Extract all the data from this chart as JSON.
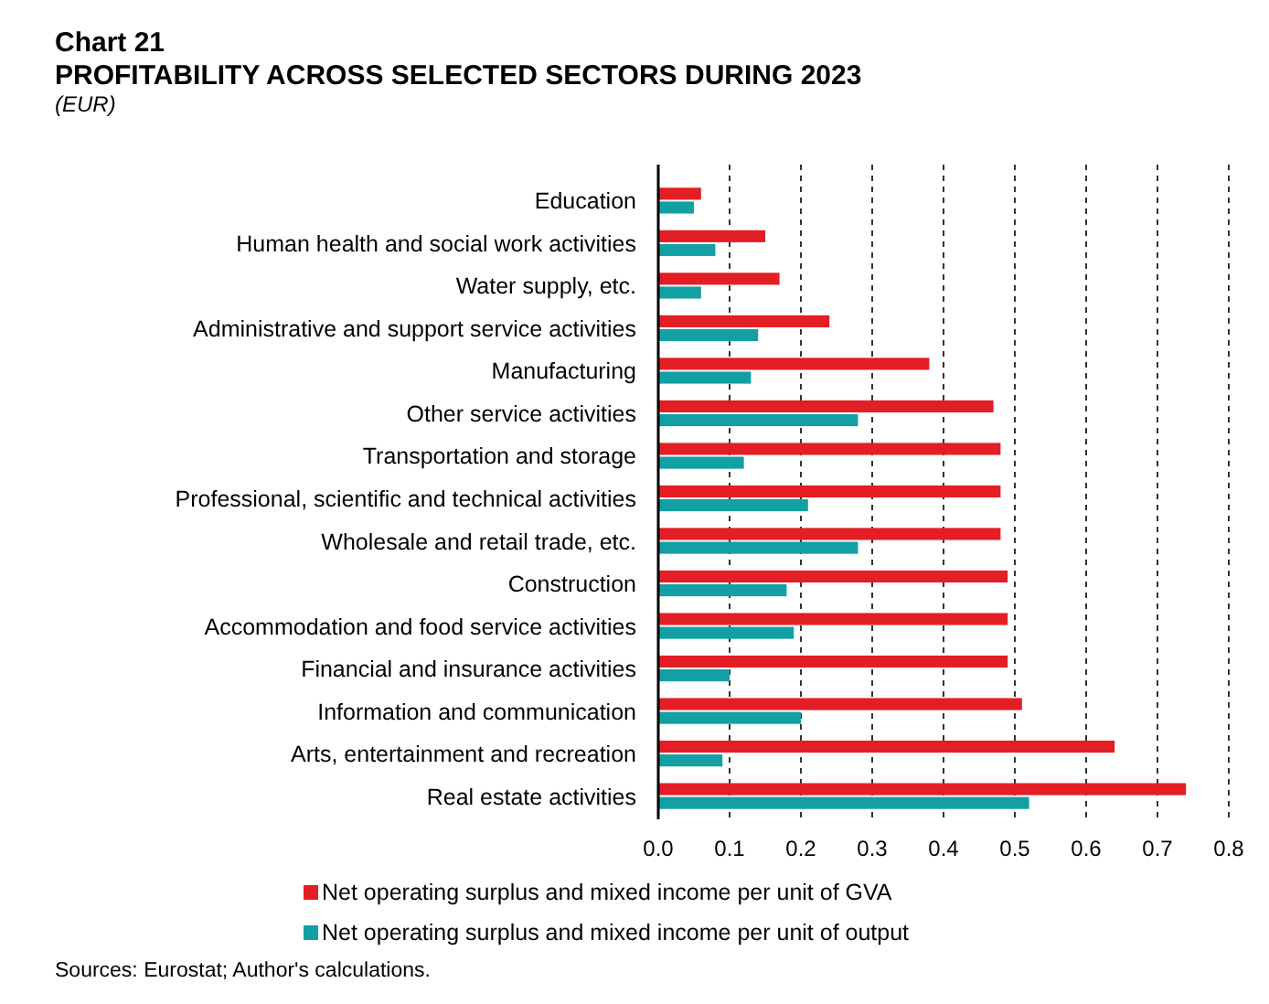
{
  "chart_data": {
    "type": "bar",
    "orientation": "horizontal",
    "title": "Chart 21",
    "subtitle": "PROFITABILITY ACROSS SELECTED SECTORS DURING 2023",
    "ylabel": "(EUR)",
    "categories": [
      "Education",
      "Human health and social work activities",
      "Water supply, etc.",
      "Administrative and support service activities",
      "Manufacturing",
      "Other service activities",
      "Transportation and storage",
      "Professional, scientific and technical activities",
      "Wholesale and retail trade, etc.",
      "Construction",
      "Accommodation and food service activities",
      "Financial and insurance activities",
      "Information and communication",
      "Arts, entertainment and recreation",
      "Real estate activities"
    ],
    "series": [
      {
        "name": "Net operating surplus and mixed income per unit of GVA",
        "color": "#e31e24",
        "values": [
          0.06,
          0.15,
          0.17,
          0.24,
          0.38,
          0.47,
          0.48,
          0.48,
          0.48,
          0.49,
          0.49,
          0.49,
          0.51,
          0.64,
          0.74
        ]
      },
      {
        "name": "Net operating surplus and mixed income per unit of output",
        "color": "#12a0a4",
        "values": [
          0.05,
          0.08,
          0.06,
          0.14,
          0.13,
          0.28,
          0.12,
          0.21,
          0.28,
          0.18,
          0.19,
          0.1,
          0.2,
          0.09,
          0.52
        ]
      }
    ],
    "xlim": [
      0,
      0.8
    ],
    "xticks": [
      {
        "value": 0,
        "label": "0.0"
      },
      0.1,
      0.2,
      0.3,
      0.4,
      0.5,
      0.6,
      0.7,
      0.8
    ],
    "grid": "x",
    "legend": "bottom",
    "annotations": [
      "Sources: Eurostat; Author's calculations."
    ]
  }
}
